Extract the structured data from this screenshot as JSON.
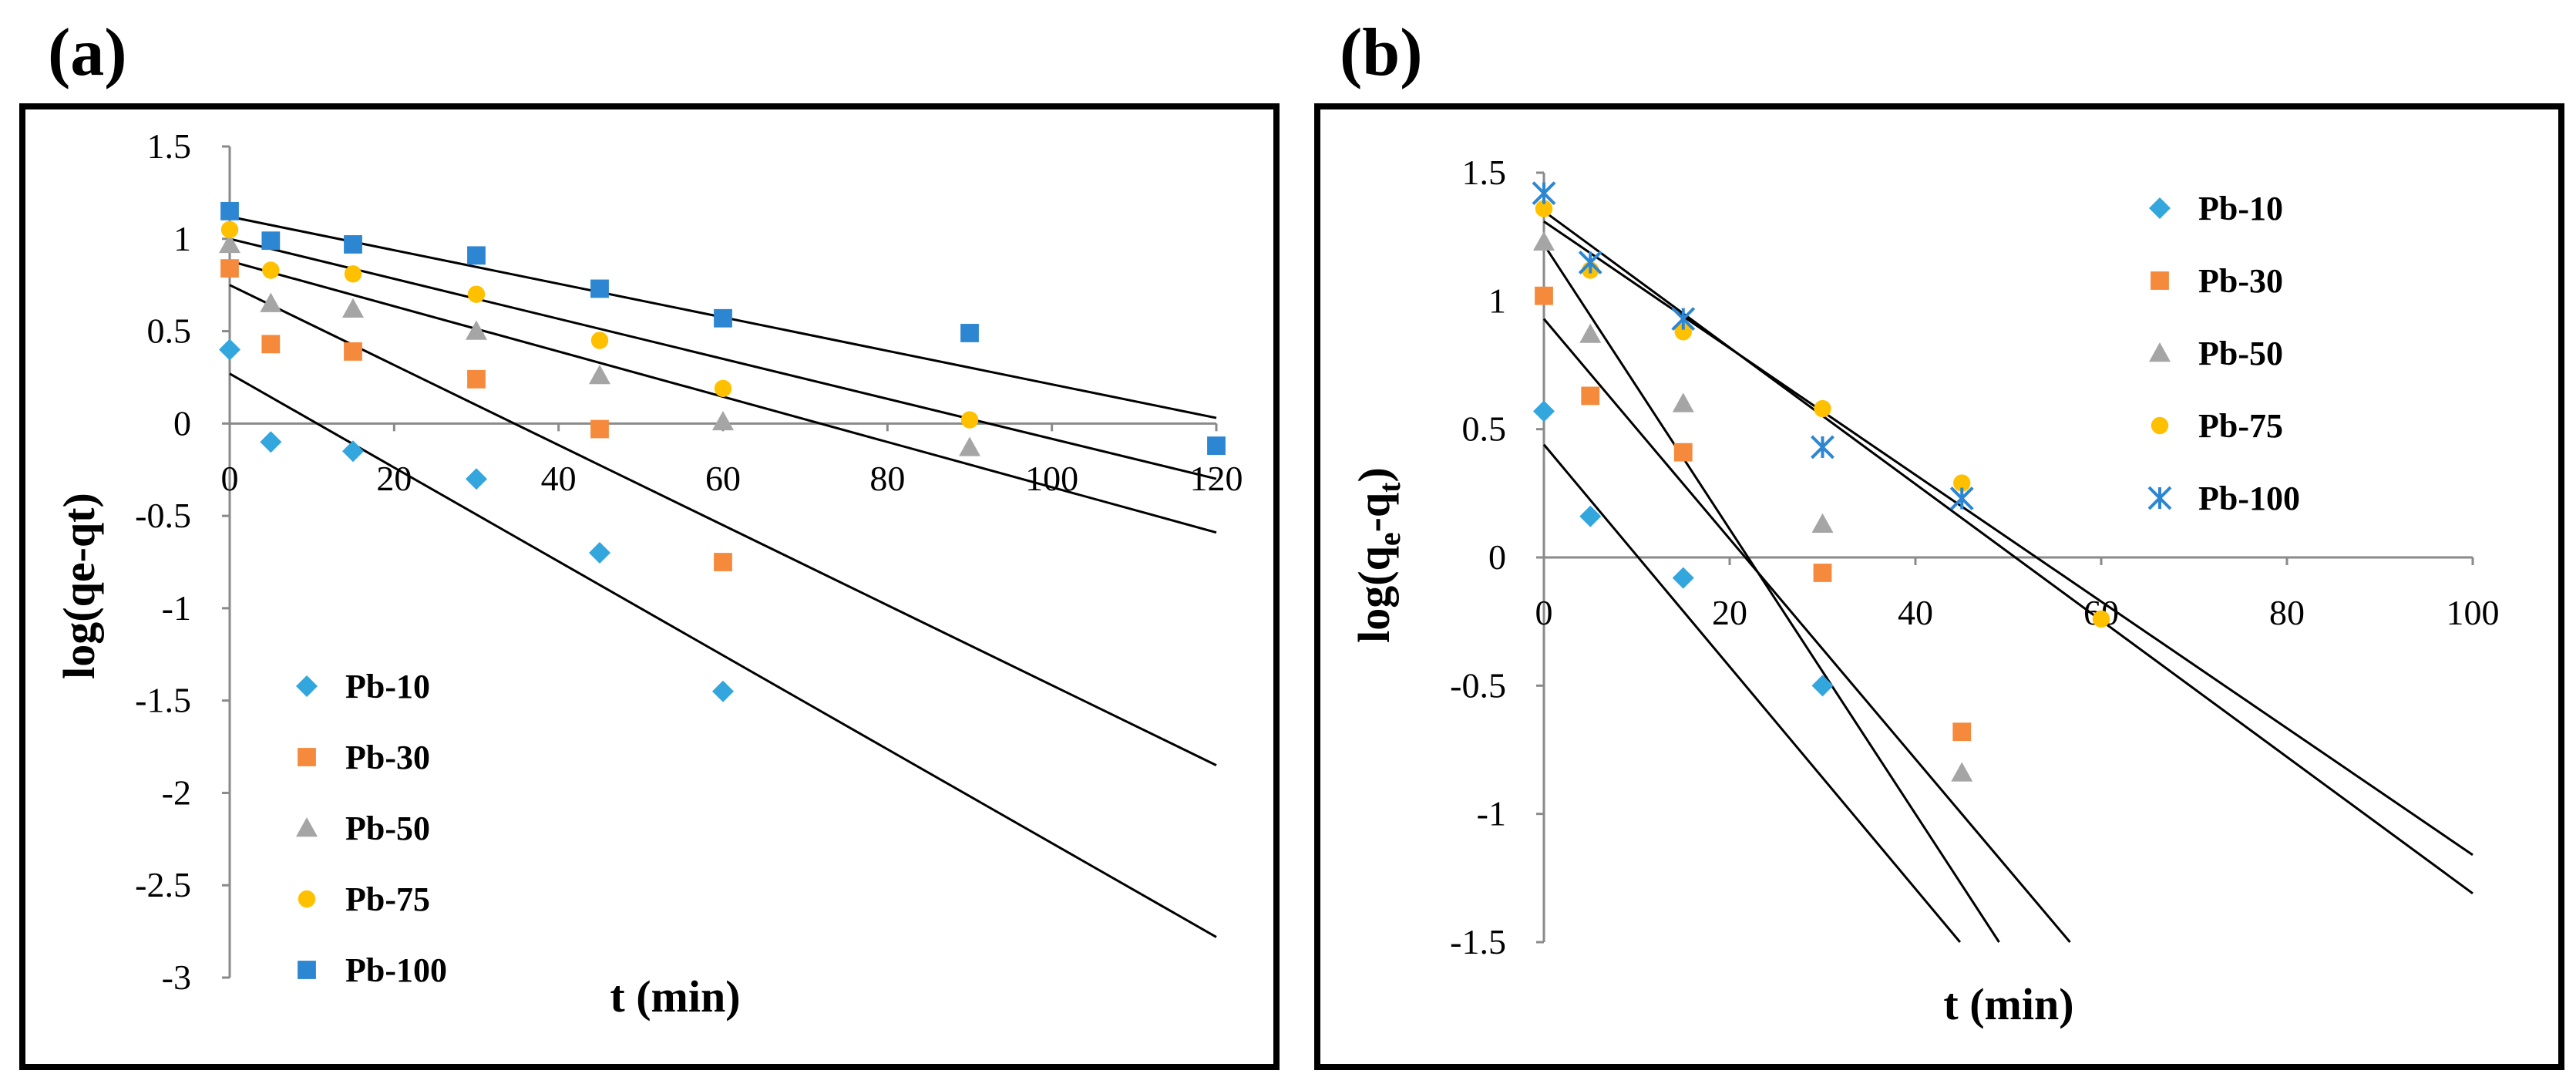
{
  "chart_data": [
    {
      "panel": "(a)",
      "type": "scatter",
      "xlabel": "t (min)",
      "ylabel": "log(qe-qt)",
      "xlim": [
        0,
        120
      ],
      "ylim": [
        -3,
        1.5
      ],
      "xticks": [
        0,
        20,
        40,
        60,
        80,
        100,
        120
      ],
      "yticks": [
        1.5,
        1,
        0.5,
        0,
        -0.5,
        -1,
        -1.5,
        -2,
        -2.5,
        -3
      ],
      "legend_position": "bottom-left",
      "series": [
        {
          "name": "Pb-10",
          "marker": "diamond",
          "color": "#33A6DD",
          "x": [
            0,
            5,
            15,
            30,
            45,
            60
          ],
          "y": [
            0.4,
            -0.1,
            -0.15,
            -0.3,
            -0.7,
            -1.45
          ],
          "fit": {
            "intercept": 0.27,
            "slope": -0.02542
          }
        },
        {
          "name": "Pb-30",
          "marker": "square",
          "color": "#F58A3C",
          "x": [
            0,
            5,
            15,
            30,
            45,
            60
          ],
          "y": [
            0.84,
            0.43,
            0.39,
            0.24,
            -0.03,
            -0.75
          ],
          "fit": {
            "intercept": 0.75,
            "slope": -0.02167
          }
        },
        {
          "name": "Pb-50",
          "marker": "triangle",
          "color": "#A5A5A5",
          "x": [
            0,
            5,
            15,
            30,
            45,
            60,
            90
          ],
          "y": [
            0.97,
            0.65,
            0.62,
            0.5,
            0.26,
            0.01,
            -0.13
          ],
          "fit": {
            "intercept": 0.88,
            "slope": -0.01225
          }
        },
        {
          "name": "Pb-75",
          "marker": "circle",
          "color": "#FFC000",
          "x": [
            0,
            5,
            15,
            30,
            45,
            60,
            90
          ],
          "y": [
            1.05,
            0.83,
            0.81,
            0.7,
            0.45,
            0.19,
            0.02
          ],
          "fit": {
            "intercept": 1.0,
            "slope": -0.01083
          }
        },
        {
          "name": "Pb-100",
          "marker": "square",
          "color": "#2C86D2",
          "x": [
            0,
            5,
            15,
            30,
            45,
            60,
            90,
            120
          ],
          "y": [
            1.15,
            0.99,
            0.97,
            0.91,
            0.73,
            0.57,
            0.49,
            -0.12
          ],
          "fit": {
            "intercept": 1.12,
            "slope": -0.00908
          }
        }
      ]
    },
    {
      "panel": "(b)",
      "type": "scatter",
      "xlabel": "t (min)",
      "ylabel_main": "log(q",
      "ylabel_sub1": "e",
      "ylabel_mid": "-q",
      "ylabel_sub2": "t",
      "ylabel_end": ")",
      "xlim": [
        0,
        100
      ],
      "ylim": [
        -1.5,
        1.5
      ],
      "xticks": [
        0,
        20,
        40,
        60,
        80,
        100
      ],
      "yticks": [
        1.5,
        1,
        0.5,
        0,
        -0.5,
        -1,
        -1.5
      ],
      "legend_position": "top-right",
      "series": [
        {
          "name": "Pb-10",
          "marker": "diamond",
          "color": "#33A6DD",
          "x": [
            0,
            5,
            15,
            30
          ],
          "y": [
            0.57,
            0.16,
            -0.08,
            -0.5
          ],
          "fit": {
            "intercept": 0.44,
            "slope": -0.0433
          }
        },
        {
          "name": "Pb-30",
          "marker": "square",
          "color": "#F58A3C",
          "x": [
            0,
            5,
            15,
            30,
            45
          ],
          "y": [
            1.02,
            0.63,
            0.41,
            -0.06,
            -0.68
          ],
          "fit": {
            "intercept": 0.93,
            "slope": -0.0429
          }
        },
        {
          "name": "Pb-50",
          "marker": "triangle",
          "color": "#A5A5A5",
          "x": [
            0,
            5,
            15,
            30,
            45
          ],
          "y": [
            1.23,
            0.87,
            0.6,
            0.13,
            -0.84
          ],
          "fit": {
            "intercept": 1.22,
            "slope": -0.0555
          }
        },
        {
          "name": "Pb-75",
          "marker": "circle",
          "color": "#FFC000",
          "x": [
            0,
            5,
            15,
            30,
            45,
            60
          ],
          "y": [
            1.36,
            1.12,
            0.88,
            0.58,
            0.29,
            -0.24
          ],
          "fit": {
            "intercept": 1.35,
            "slope": -0.0266
          }
        },
        {
          "name": "Pb-100",
          "marker": "asterisk",
          "color": "#2C86D2",
          "x": [
            0,
            5,
            15,
            30,
            45
          ],
          "y": [
            1.42,
            1.15,
            0.93,
            0.43,
            0.23
          ],
          "fit": {
            "intercept": 1.31,
            "slope": -0.0247
          }
        }
      ]
    }
  ]
}
